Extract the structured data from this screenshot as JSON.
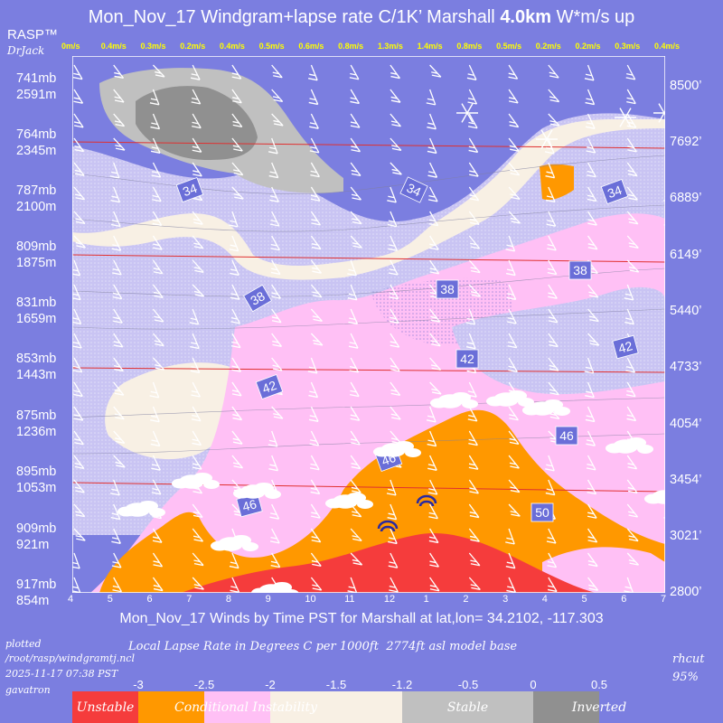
{
  "title": {
    "prefix": "Mon_Nov_17 Windgram+lapse rate C/1K’  Marshall",
    "bold": "4.0km",
    "suffix": "  W*m/s up"
  },
  "brand": {
    "rasp": "RASP™",
    "drjack": "DrJack"
  },
  "chart_data": {
    "type": "heatmap",
    "title": "Mon_Nov_17 Windgram+lapse rate C/1K’  Marshall 4.0km  W*m/s up",
    "xlabel": "Mon_Nov_17 Winds by Time PST for Marshall at lat,lon= 34.2102, -117.303",
    "x_ticks": [
      "4",
      "5",
      "6",
      "7",
      "8",
      "9",
      "10",
      "11",
      "12",
      "1",
      "2",
      "3",
      "4",
      "5",
      "6",
      "7"
    ],
    "updraft_labels": [
      "0m/s",
      "0.4m/s",
      "0.3m/s",
      "0.2m/s",
      "0.4m/s",
      "0.5m/s",
      "0.6m/s",
      "0.8m/s",
      "1.3m/s",
      "1.4m/s",
      "0.8m/s",
      "0.5m/s",
      "0.2m/s",
      "0.2m/s",
      "0.3m/s",
      "0.4m/s"
    ],
    "updraft_values": [
      0,
      0.4,
      0.3,
      0.2,
      0.4,
      0.5,
      0.6,
      0.8,
      1.3,
      1.4,
      0.8,
      0.5,
      0.2,
      0.2,
      0.3,
      0.4
    ],
    "left_axis": [
      {
        "mb": "741mb",
        "m": "2591m"
      },
      {
        "mb": "764mb",
        "m": "2345m"
      },
      {
        "mb": "787mb",
        "m": "2100m"
      },
      {
        "mb": "809mb",
        "m": "1875m"
      },
      {
        "mb": "831mb",
        "m": "1659m"
      },
      {
        "mb": "853mb",
        "m": "1443m"
      },
      {
        "mb": "875mb",
        "m": "1236m"
      },
      {
        "mb": "895mb",
        "m": "1053m"
      },
      {
        "mb": "909mb",
        "m": "921m"
      },
      {
        "mb": "917mb",
        "m": "854m"
      }
    ],
    "right_axis": [
      "8500’",
      "7692’",
      "6889’",
      "6149’",
      "5440’",
      "4733’",
      "4054’",
      "3454’",
      "3021’",
      "2800’"
    ],
    "contours": [
      {
        "label": "34",
        "x": "7.0",
        "alt_ft": 6900
      },
      {
        "label": "34",
        "x": "12.3",
        "alt_ft": 6950
      },
      {
        "label": "34",
        "x": "6.1",
        "alt_ft": 6900
      },
      {
        "label": "38",
        "x": "9.2",
        "alt_ft": 5650
      },
      {
        "label": "38",
        "x": "1.5",
        "alt_ft": 5750
      },
      {
        "label": "38",
        "x": "4.9",
        "alt_ft": 6000
      },
      {
        "label": "42",
        "x": "9.3",
        "alt_ft": 4500
      },
      {
        "label": "42",
        "x": "2.0",
        "alt_ft": 4750
      },
      {
        "label": "42",
        "x": "6.0",
        "alt_ft": 4950
      },
      {
        "label": "46",
        "x": "9.1",
        "alt_ft": 3600
      },
      {
        "label": "46",
        "x": "12.0",
        "alt_ft": 3950
      },
      {
        "label": "46",
        "x": "4.6",
        "alt_ft": 4250
      },
      {
        "label": "50",
        "x": "3.8",
        "alt_ft": 3250
      }
    ]
  },
  "footer": {
    "plotted": "plotted",
    "path": "/root/rasp/windgramtj.ncl",
    "timestamp": "2025-11-17 07:38 PST",
    "host": "gavatron",
    "lapse_caption": "Local Lapse Rate in Degrees C per 1000ft  2774ft asl model base",
    "rhcut": "rhcut",
    "rhcut_val": "95%"
  },
  "legend": {
    "ticks": [
      "-3",
      "-2.5",
      "-2",
      "-1.5",
      "-1.2",
      "-0.5",
      "0",
      "0.5"
    ],
    "colors": [
      "#f53c3c",
      "#ff9800",
      "#ffc0f5",
      "#f8f0e4",
      "#7b7ee0",
      "#c0c0c0",
      "#909090"
    ],
    "labels": {
      "unstable": "Unstable",
      "conditional": "Conditional Instability",
      "stable": "Stable",
      "inverted": "Inverted"
    }
  }
}
